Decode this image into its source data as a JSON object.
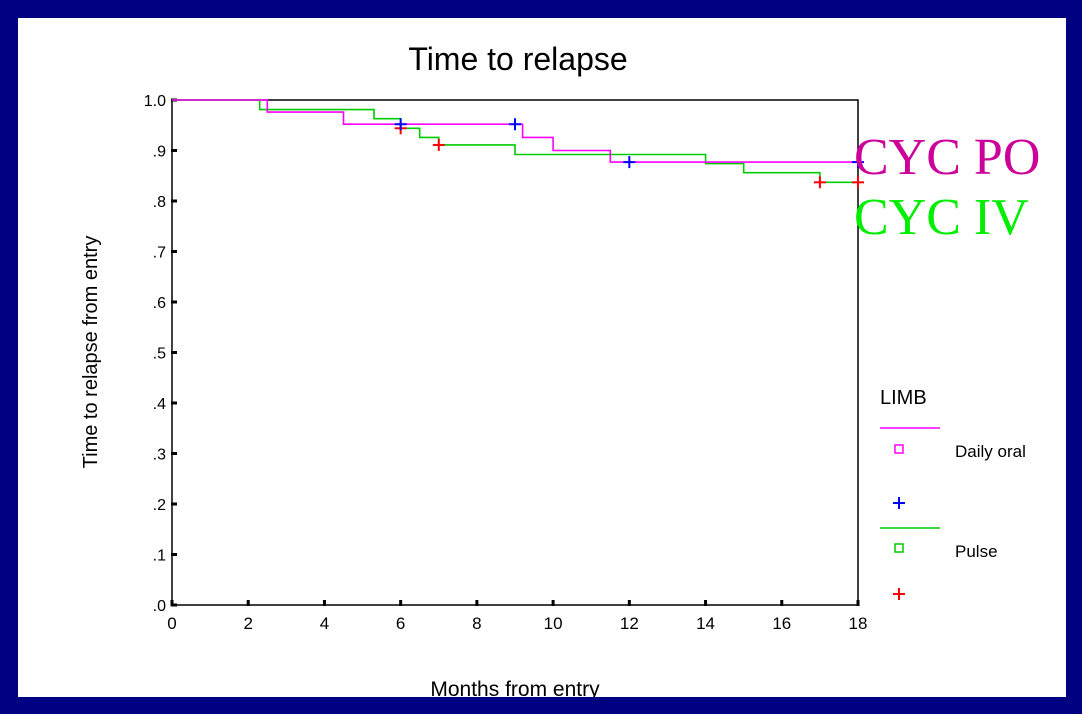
{
  "chart_data": {
    "type": "line",
    "title": "Time to relapse",
    "xlabel": "Months from entry",
    "ylabel": "Time to relapse from entry",
    "xlim": [
      0,
      18
    ],
    "ylim": [
      0,
      1
    ],
    "x_ticks": [
      "0",
      "2",
      "4",
      "6",
      "8",
      "10",
      "12",
      "14",
      "16",
      "18"
    ],
    "y_ticks": [
      ".0",
      ".1",
      ".2",
      ".3",
      ".4",
      ".5",
      ".6",
      ".7",
      ".8",
      ".9",
      "1.0"
    ],
    "grid": false,
    "legend": {
      "title": "LIMB",
      "placement": "right",
      "entries": [
        "Daily oral",
        "Pulse"
      ]
    },
    "series": [
      {
        "name": "Daily oral",
        "color": "#ff00ff",
        "step": [
          [
            0,
            1.0
          ],
          [
            2.5,
            1.0
          ],
          [
            2.5,
            0.976
          ],
          [
            4.5,
            0.976
          ],
          [
            4.5,
            0.952
          ],
          [
            9.2,
            0.952
          ],
          [
            9.2,
            0.926
          ],
          [
            10.0,
            0.926
          ],
          [
            10.0,
            0.9
          ],
          [
            11.5,
            0.9
          ],
          [
            11.5,
            0.877
          ],
          [
            18,
            0.877
          ]
        ],
        "censored": [
          [
            6.0,
            0.952
          ],
          [
            9.0,
            0.952
          ],
          [
            12.0,
            0.877
          ],
          [
            18.0,
            0.877
          ]
        ],
        "censor_color": "#0000ff"
      },
      {
        "name": "Pulse",
        "color": "#00cc00",
        "step": [
          [
            0,
            1.0
          ],
          [
            2.3,
            1.0
          ],
          [
            2.3,
            0.981
          ],
          [
            5.3,
            0.981
          ],
          [
            5.3,
            0.963
          ],
          [
            6.0,
            0.963
          ],
          [
            6.0,
            0.944
          ],
          [
            6.5,
            0.944
          ],
          [
            6.5,
            0.926
          ],
          [
            7.0,
            0.926
          ],
          [
            7.0,
            0.911
          ],
          [
            9.0,
            0.911
          ],
          [
            9.0,
            0.892
          ],
          [
            14.0,
            0.892
          ],
          [
            14.0,
            0.874
          ],
          [
            15.0,
            0.874
          ],
          [
            15.0,
            0.856
          ],
          [
            17.0,
            0.856
          ],
          [
            17.0,
            0.837
          ],
          [
            18,
            0.837
          ]
        ],
        "censored": [
          [
            6.0,
            0.944
          ],
          [
            7.0,
            0.911
          ],
          [
            17.0,
            0.837
          ],
          [
            18.0,
            0.837
          ]
        ],
        "censor_color": "#ff0000"
      }
    ],
    "annotations": [
      {
        "text": "CYC PO",
        "color": "#cc0099"
      },
      {
        "text": "CYC IV",
        "color": "#00ee00"
      }
    ]
  }
}
